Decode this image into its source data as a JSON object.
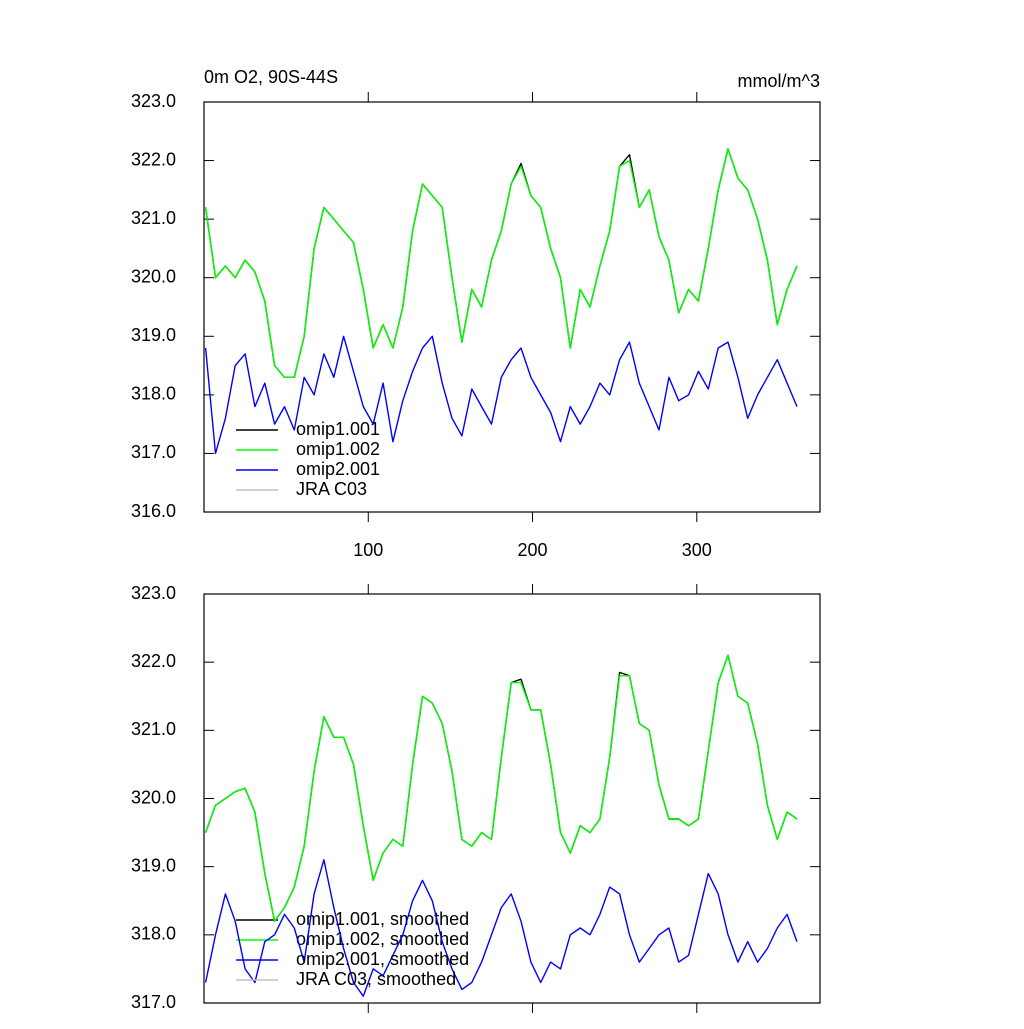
{
  "chart_data": [
    {
      "type": "line",
      "title": "0m O2, 90S-44S",
      "units": "mmol/m^3",
      "x": [
        1,
        7,
        13,
        19,
        25,
        31,
        37,
        43,
        49,
        55,
        61,
        67,
        73,
        79,
        85,
        91,
        97,
        103,
        109,
        115,
        121,
        127,
        133,
        139,
        145,
        151,
        157,
        163,
        169,
        175,
        181,
        187,
        193,
        199,
        205,
        211,
        217,
        223,
        229,
        235,
        241,
        247,
        253,
        259,
        265,
        271,
        277,
        283,
        289,
        295,
        301,
        307,
        313,
        319,
        325,
        331,
        337,
        343,
        349,
        355,
        361
      ],
      "xlim": [
        0,
        375
      ],
      "xticks": [
        100,
        200,
        300
      ],
      "ylim": [
        316,
        323
      ],
      "yticks": [
        {
          "value": 316,
          "label": "316.0"
        },
        {
          "value": 317,
          "label": "317.0"
        },
        {
          "value": 318,
          "label": "318.0"
        },
        {
          "value": 319,
          "label": "319.0"
        },
        {
          "value": 320,
          "label": "320.0"
        },
        {
          "value": 321,
          "label": "321.0"
        },
        {
          "value": 322,
          "label": "322.0"
        },
        {
          "value": 323,
          "label": "323.0"
        }
      ],
      "series": [
        {
          "name": "omip1.001",
          "color": "#000000",
          "values": [
            321.2,
            320.0,
            320.2,
            320.0,
            320.3,
            320.1,
            319.6,
            318.5,
            318.3,
            318.3,
            319.0,
            320.5,
            321.2,
            321.0,
            320.8,
            320.6,
            319.8,
            318.8,
            319.2,
            318.8,
            319.5,
            320.8,
            321.6,
            321.4,
            321.2,
            320.0,
            318.9,
            319.8,
            319.5,
            320.3,
            320.8,
            321.6,
            321.95,
            321.4,
            321.2,
            320.5,
            320.0,
            318.8,
            319.8,
            319.5,
            320.2,
            320.8,
            321.9,
            322.1,
            321.2,
            321.5,
            320.7,
            320.3,
            319.4,
            319.8,
            319.6,
            320.5,
            321.5,
            322.2,
            321.7,
            321.5,
            321.0,
            320.3,
            319.2,
            319.8,
            320.2
          ]
        },
        {
          "name": "omip1.002",
          "color": "#00ff00",
          "values": [
            321.2,
            320.0,
            320.2,
            320.0,
            320.3,
            320.1,
            319.6,
            318.5,
            318.3,
            318.3,
            319.0,
            320.5,
            321.2,
            321.0,
            320.8,
            320.6,
            319.8,
            318.8,
            319.2,
            318.8,
            319.5,
            320.8,
            321.6,
            321.4,
            321.2,
            320.0,
            318.9,
            319.8,
            319.5,
            320.3,
            320.8,
            321.6,
            321.9,
            321.4,
            321.2,
            320.5,
            320.0,
            318.8,
            319.8,
            319.5,
            320.2,
            320.8,
            321.9,
            322.0,
            321.2,
            321.5,
            320.7,
            320.3,
            319.4,
            319.8,
            319.6,
            320.5,
            321.5,
            322.2,
            321.7,
            321.5,
            321.0,
            320.3,
            319.2,
            319.8,
            320.2
          ]
        },
        {
          "name": "omip2.001",
          "color": "#0000ff",
          "values": [
            318.8,
            317.0,
            317.6,
            318.5,
            318.7,
            317.8,
            318.2,
            317.5,
            317.8,
            317.4,
            318.3,
            318.0,
            318.7,
            318.3,
            319.0,
            318.4,
            317.8,
            317.5,
            318.2,
            317.2,
            317.9,
            318.4,
            318.8,
            319.0,
            318.2,
            317.6,
            317.3,
            318.1,
            317.8,
            317.5,
            318.3,
            318.6,
            318.8,
            318.3,
            318.0,
            317.7,
            317.2,
            317.8,
            317.5,
            317.8,
            318.2,
            318.0,
            318.6,
            318.9,
            318.2,
            317.8,
            317.4,
            318.3,
            317.9,
            318.0,
            318.4,
            318.1,
            318.8,
            318.9,
            318.3,
            317.6,
            318.0,
            318.3,
            318.6,
            318.2,
            317.8
          ]
        },
        {
          "name": "JRA C03",
          "color": "#c0c0c0",
          "values": [
            null,
            null,
            null,
            null,
            null,
            null,
            null,
            null,
            null,
            null,
            null,
            null,
            null,
            null,
            null,
            null,
            null,
            null,
            null,
            null,
            null,
            null,
            null,
            null,
            null,
            null,
            null,
            null,
            null,
            null,
            null,
            null,
            null,
            null,
            null,
            null,
            null,
            null,
            null,
            null,
            null,
            null,
            null,
            null,
            null,
            null,
            null,
            null,
            null,
            null,
            null,
            null,
            null,
            null,
            null,
            null,
            null,
            null,
            null,
            null,
            null
          ]
        }
      ]
    },
    {
      "type": "line",
      "x": [
        1,
        7,
        13,
        19,
        25,
        31,
        37,
        43,
        49,
        55,
        61,
        67,
        73,
        79,
        85,
        91,
        97,
        103,
        109,
        115,
        121,
        127,
        133,
        139,
        145,
        151,
        157,
        163,
        169,
        175,
        181,
        187,
        193,
        199,
        205,
        211,
        217,
        223,
        229,
        235,
        241,
        247,
        253,
        259,
        265,
        271,
        277,
        283,
        289,
        295,
        301,
        307,
        313,
        319,
        325,
        331,
        337,
        343,
        349,
        355,
        361
      ],
      "xlim": [
        0,
        375
      ],
      "ylim": [
        317,
        323
      ],
      "yticks": [
        {
          "value": 317,
          "label": "317.0"
        },
        {
          "value": 318,
          "label": "318.0"
        },
        {
          "value": 319,
          "label": "319.0"
        },
        {
          "value": 320,
          "label": "320.0"
        },
        {
          "value": 321,
          "label": "321.0"
        },
        {
          "value": 322,
          "label": "322.0"
        },
        {
          "value": 323,
          "label": "323.0"
        }
      ],
      "series": [
        {
          "name": "omip1.001, smoothed",
          "color": "#000000",
          "values": [
            319.5,
            319.9,
            320.0,
            320.1,
            320.15,
            319.8,
            318.9,
            318.2,
            318.4,
            318.7,
            319.3,
            320.4,
            321.2,
            320.9,
            320.9,
            320.5,
            319.6,
            318.8,
            319.2,
            319.4,
            319.3,
            320.5,
            321.5,
            321.4,
            321.1,
            320.4,
            319.4,
            319.3,
            319.5,
            319.4,
            320.6,
            321.7,
            321.75,
            321.3,
            321.3,
            320.5,
            319.5,
            319.2,
            319.6,
            319.5,
            319.7,
            320.6,
            321.85,
            321.8,
            321.1,
            321.0,
            320.2,
            319.7,
            319.7,
            319.6,
            319.7,
            320.7,
            321.7,
            322.1,
            321.5,
            321.4,
            320.8,
            319.9,
            319.4,
            319.8,
            319.7
          ]
        },
        {
          "name": "omip1.002, smoothed",
          "color": "#00ff00",
          "values": [
            319.5,
            319.9,
            320.0,
            320.1,
            320.15,
            319.8,
            318.9,
            318.2,
            318.4,
            318.7,
            319.3,
            320.4,
            321.2,
            320.9,
            320.9,
            320.5,
            319.6,
            318.8,
            319.2,
            319.4,
            319.3,
            320.5,
            321.5,
            321.4,
            321.1,
            320.4,
            319.4,
            319.3,
            319.5,
            319.4,
            320.6,
            321.7,
            321.7,
            321.3,
            321.3,
            320.5,
            319.5,
            319.2,
            319.6,
            319.5,
            319.7,
            320.6,
            321.8,
            321.8,
            321.1,
            321.0,
            320.2,
            319.7,
            319.7,
            319.6,
            319.7,
            320.7,
            321.7,
            322.1,
            321.5,
            321.4,
            320.8,
            319.9,
            319.4,
            319.8,
            319.7
          ]
        },
        {
          "name": "omip2.001, smoothed",
          "color": "#0000ff",
          "values": [
            317.3,
            318.0,
            318.6,
            318.2,
            317.5,
            317.3,
            317.9,
            318.0,
            318.3,
            318.1,
            317.6,
            318.6,
            319.1,
            318.4,
            317.8,
            317.3,
            317.1,
            317.5,
            317.4,
            317.7,
            318.0,
            318.5,
            318.8,
            318.5,
            317.9,
            317.5,
            317.2,
            317.3,
            317.6,
            318.0,
            318.4,
            318.6,
            318.2,
            317.6,
            317.3,
            317.6,
            317.5,
            318.0,
            318.1,
            318.0,
            318.3,
            318.7,
            318.6,
            318.0,
            317.6,
            317.8,
            318.0,
            318.1,
            317.6,
            317.7,
            318.3,
            318.9,
            318.6,
            318.0,
            317.6,
            317.9,
            317.6,
            317.8,
            318.1,
            318.3,
            317.9
          ]
        },
        {
          "name": "JRA C03, smoothed",
          "color": "#c0c0c0",
          "values": [
            null,
            null,
            null,
            null,
            null,
            null,
            null,
            null,
            null,
            null,
            null,
            null,
            null,
            null,
            null,
            null,
            null,
            null,
            null,
            null,
            null,
            null,
            null,
            null,
            null,
            null,
            null,
            null,
            null,
            null,
            null,
            null,
            null,
            null,
            null,
            null,
            null,
            null,
            null,
            null,
            null,
            null,
            null,
            null,
            null,
            null,
            null,
            null,
            null,
            null,
            null,
            null,
            null,
            null,
            null,
            null,
            null,
            null,
            null,
            null,
            null
          ]
        }
      ]
    }
  ]
}
